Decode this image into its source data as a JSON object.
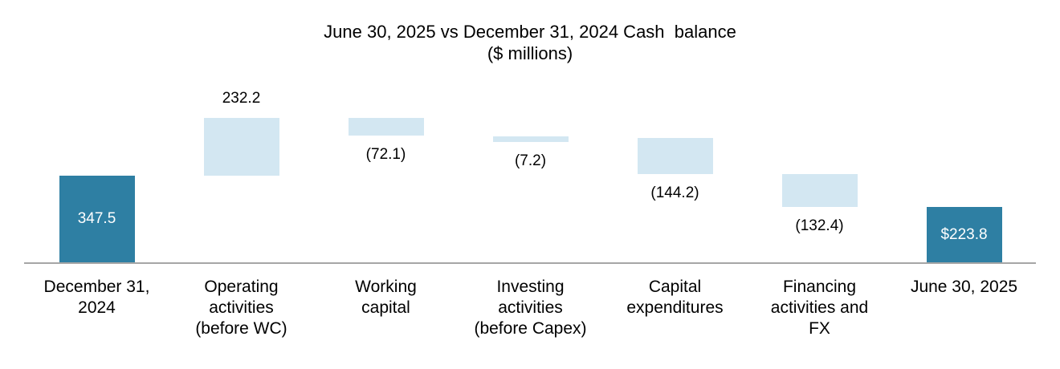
{
  "title": {
    "line1": "June 30, 2025 vs December 31, 2024 Cash  balance",
    "line2": "($ millions)"
  },
  "colors": {
    "total_bar": "#2e7fa3",
    "delta_bar": "#d3e7f2",
    "axis_line": "#a6a6a6",
    "value_label_dark": "#000000",
    "value_label_light": "#ffffff"
  },
  "chart_data": {
    "type": "bar",
    "subtype": "waterfall",
    "title": "June 30, 2025 vs December 31, 2024 Cash  balance",
    "subtitle": "($ millions)",
    "legend_position": "none",
    "grid": false,
    "y_axis_visible": false,
    "x_axis_line_visible": true,
    "categories": [
      "December 31, 2024",
      "Operating activities (before WC)",
      "Working capital",
      "Investing activities (before Capex)",
      "Capital expenditures",
      "Financing activities and FX",
      "June 30, 2025"
    ],
    "bars": [
      {
        "kind": "total",
        "value": 347.5,
        "display": "347.5",
        "value_label_position": "inside",
        "label_lines": [
          "December 31,",
          "2024"
        ]
      },
      {
        "kind": "delta",
        "value": 232.2,
        "display": "232.2",
        "value_label_position": "above",
        "label_lines": [
          "Operating",
          "activities",
          "(before WC)"
        ]
      },
      {
        "kind": "delta",
        "value": -72.1,
        "display": "(72.1)",
        "value_label_position": "below",
        "label_lines": [
          "Working",
          "capital"
        ]
      },
      {
        "kind": "delta",
        "value": -7.2,
        "display": "(7.2)",
        "value_label_position": "below",
        "label_lines": [
          "Investing",
          "activities",
          "(before Capex)"
        ]
      },
      {
        "kind": "delta",
        "value": -144.2,
        "display": "(144.2)",
        "value_label_position": "below",
        "label_lines": [
          "Capital",
          "expenditures"
        ]
      },
      {
        "kind": "delta",
        "value": -132.4,
        "display": "(132.4)",
        "value_label_position": "below",
        "label_lines": [
          "Financing",
          "activities and",
          "FX"
        ]
      },
      {
        "kind": "total",
        "value": 223.8,
        "display": "$223.8",
        "value_label_position": "inside",
        "label_lines": [
          "June 30, 2025"
        ]
      }
    ],
    "cumulative_levels": [
      347.5,
      579.7,
      507.6,
      500.4,
      356.2,
      223.8
    ],
    "start_value": 347.5,
    "end_value": 223.8
  }
}
